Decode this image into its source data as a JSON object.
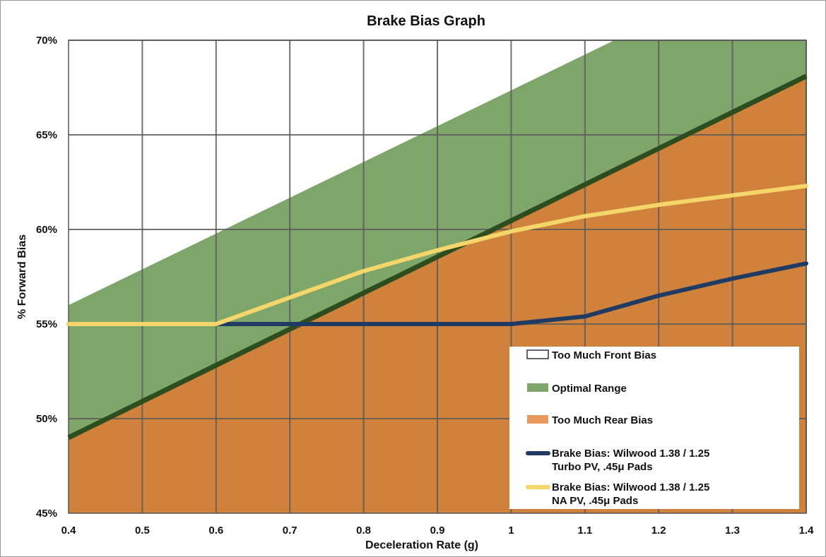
{
  "chart_data": {
    "type": "area",
    "title": "Brake Bias Graph",
    "xlabel": "Deceleration Rate (g)",
    "ylabel": "% Forward Bias",
    "xlim": [
      0.4,
      1.4
    ],
    "ylim": [
      45,
      70
    ],
    "x_ticks": [
      0.4,
      0.5,
      0.6,
      0.7,
      0.8,
      0.9,
      1,
      1.1,
      1.2,
      1.3,
      1.4
    ],
    "x_tick_labels": [
      "0.4",
      "0.5",
      "0.6",
      "0.7",
      "0.8",
      "0.9",
      "1",
      "1.1",
      "1.2",
      "1.3",
      "1.4"
    ],
    "y_ticks": [
      45,
      50,
      55,
      60,
      65,
      70
    ],
    "y_tick_labels": [
      "45%",
      "50%",
      "55%",
      "60%",
      "65%",
      "70%"
    ],
    "grid": true,
    "legend_position": "bottom-right",
    "regions": [
      {
        "label": "Too Much Front Bias",
        "color": "#ffffff",
        "border": "#000000"
      },
      {
        "label": "Optimal Range",
        "color": "#7fa66a",
        "upper": {
          "x": [
            0.4,
            1.14,
            1.4
          ],
          "y": [
            56.0,
            70.0,
            70.0
          ]
        },
        "lower": {
          "x": [
            0.4,
            1.4
          ],
          "y": [
            49.0,
            68.1
          ]
        }
      },
      {
        "label": "Too Much Rear Bias",
        "color": "#d0813b",
        "legend_color": "#e89a5c",
        "upper": {
          "x": [
            0.4,
            1.4
          ],
          "y": [
            49.0,
            68.1
          ]
        }
      }
    ],
    "boundary_line_color": "#2e4d1e",
    "series": [
      {
        "name": "Brake Bias: Wilwood 1.38 / 1.25 Turbo PV, .45μ Pads",
        "legend_lines": [
          "Brake Bias: Wilwood 1.38 / 1.25",
          "Turbo PV, .45μ Pads"
        ],
        "color": "#1f3b63",
        "x": [
          0.4,
          0.6,
          1.0,
          1.1,
          1.2,
          1.3,
          1.4
        ],
        "y": [
          55.0,
          55.0,
          55.0,
          55.4,
          56.5,
          57.4,
          58.2
        ]
      },
      {
        "name": "Brake Bias: Wilwood 1.38 / 1.25 NA PV, .45μ Pads",
        "legend_lines": [
          "Brake Bias: Wilwood 1.38 / 1.25",
          "NA PV, .45μ Pads"
        ],
        "color": "#f5d66a",
        "x": [
          0.4,
          0.6,
          0.7,
          0.8,
          0.9,
          1.0,
          1.1,
          1.2,
          1.3,
          1.4
        ],
        "y": [
          55.0,
          55.0,
          56.4,
          57.8,
          58.9,
          59.9,
          60.7,
          61.3,
          61.8,
          62.3
        ]
      }
    ]
  }
}
